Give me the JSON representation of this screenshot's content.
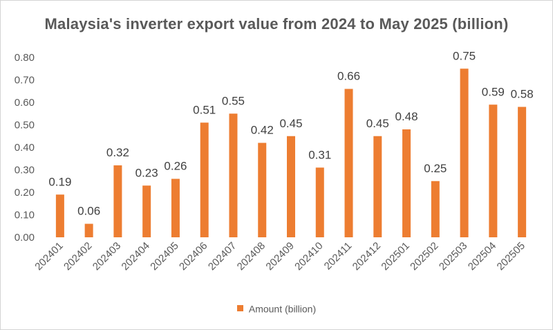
{
  "chart_data": {
    "type": "bar",
    "title": "Malaysia's inverter export value from 2024 to May 2025 (billion)",
    "categories": [
      "202401",
      "202402",
      "202403",
      "202404",
      "202405",
      "202406",
      "202407",
      "202408",
      "202409",
      "202410",
      "202411",
      "202412",
      "202501",
      "202502",
      "202503",
      "202504",
      "202505"
    ],
    "series": [
      {
        "name": "Amount (billion)",
        "values": [
          0.19,
          0.06,
          0.32,
          0.23,
          0.26,
          0.51,
          0.55,
          0.42,
          0.45,
          0.31,
          0.66,
          0.45,
          0.48,
          0.25,
          0.75,
          0.59,
          0.58
        ],
        "data_labels": [
          "0.19",
          "0.06",
          "0.32",
          "0.23",
          "0.26",
          "0.51",
          "0.55",
          "0.42",
          "0.45",
          "0.31",
          "0.66",
          "0.45",
          "0.48",
          "0.25",
          "0.75",
          "0.59",
          "0.58"
        ],
        "color": "#ED7D31"
      }
    ],
    "y_ticks": [
      "0.00",
      "0.10",
      "0.20",
      "0.30",
      "0.40",
      "0.50",
      "0.60",
      "0.70",
      "0.80"
    ],
    "ylim": [
      0,
      0.8
    ],
    "xlabel": "",
    "ylabel": "",
    "grid": false,
    "legend_position": "bottom",
    "category_label_rotation": "rotated -45°"
  }
}
